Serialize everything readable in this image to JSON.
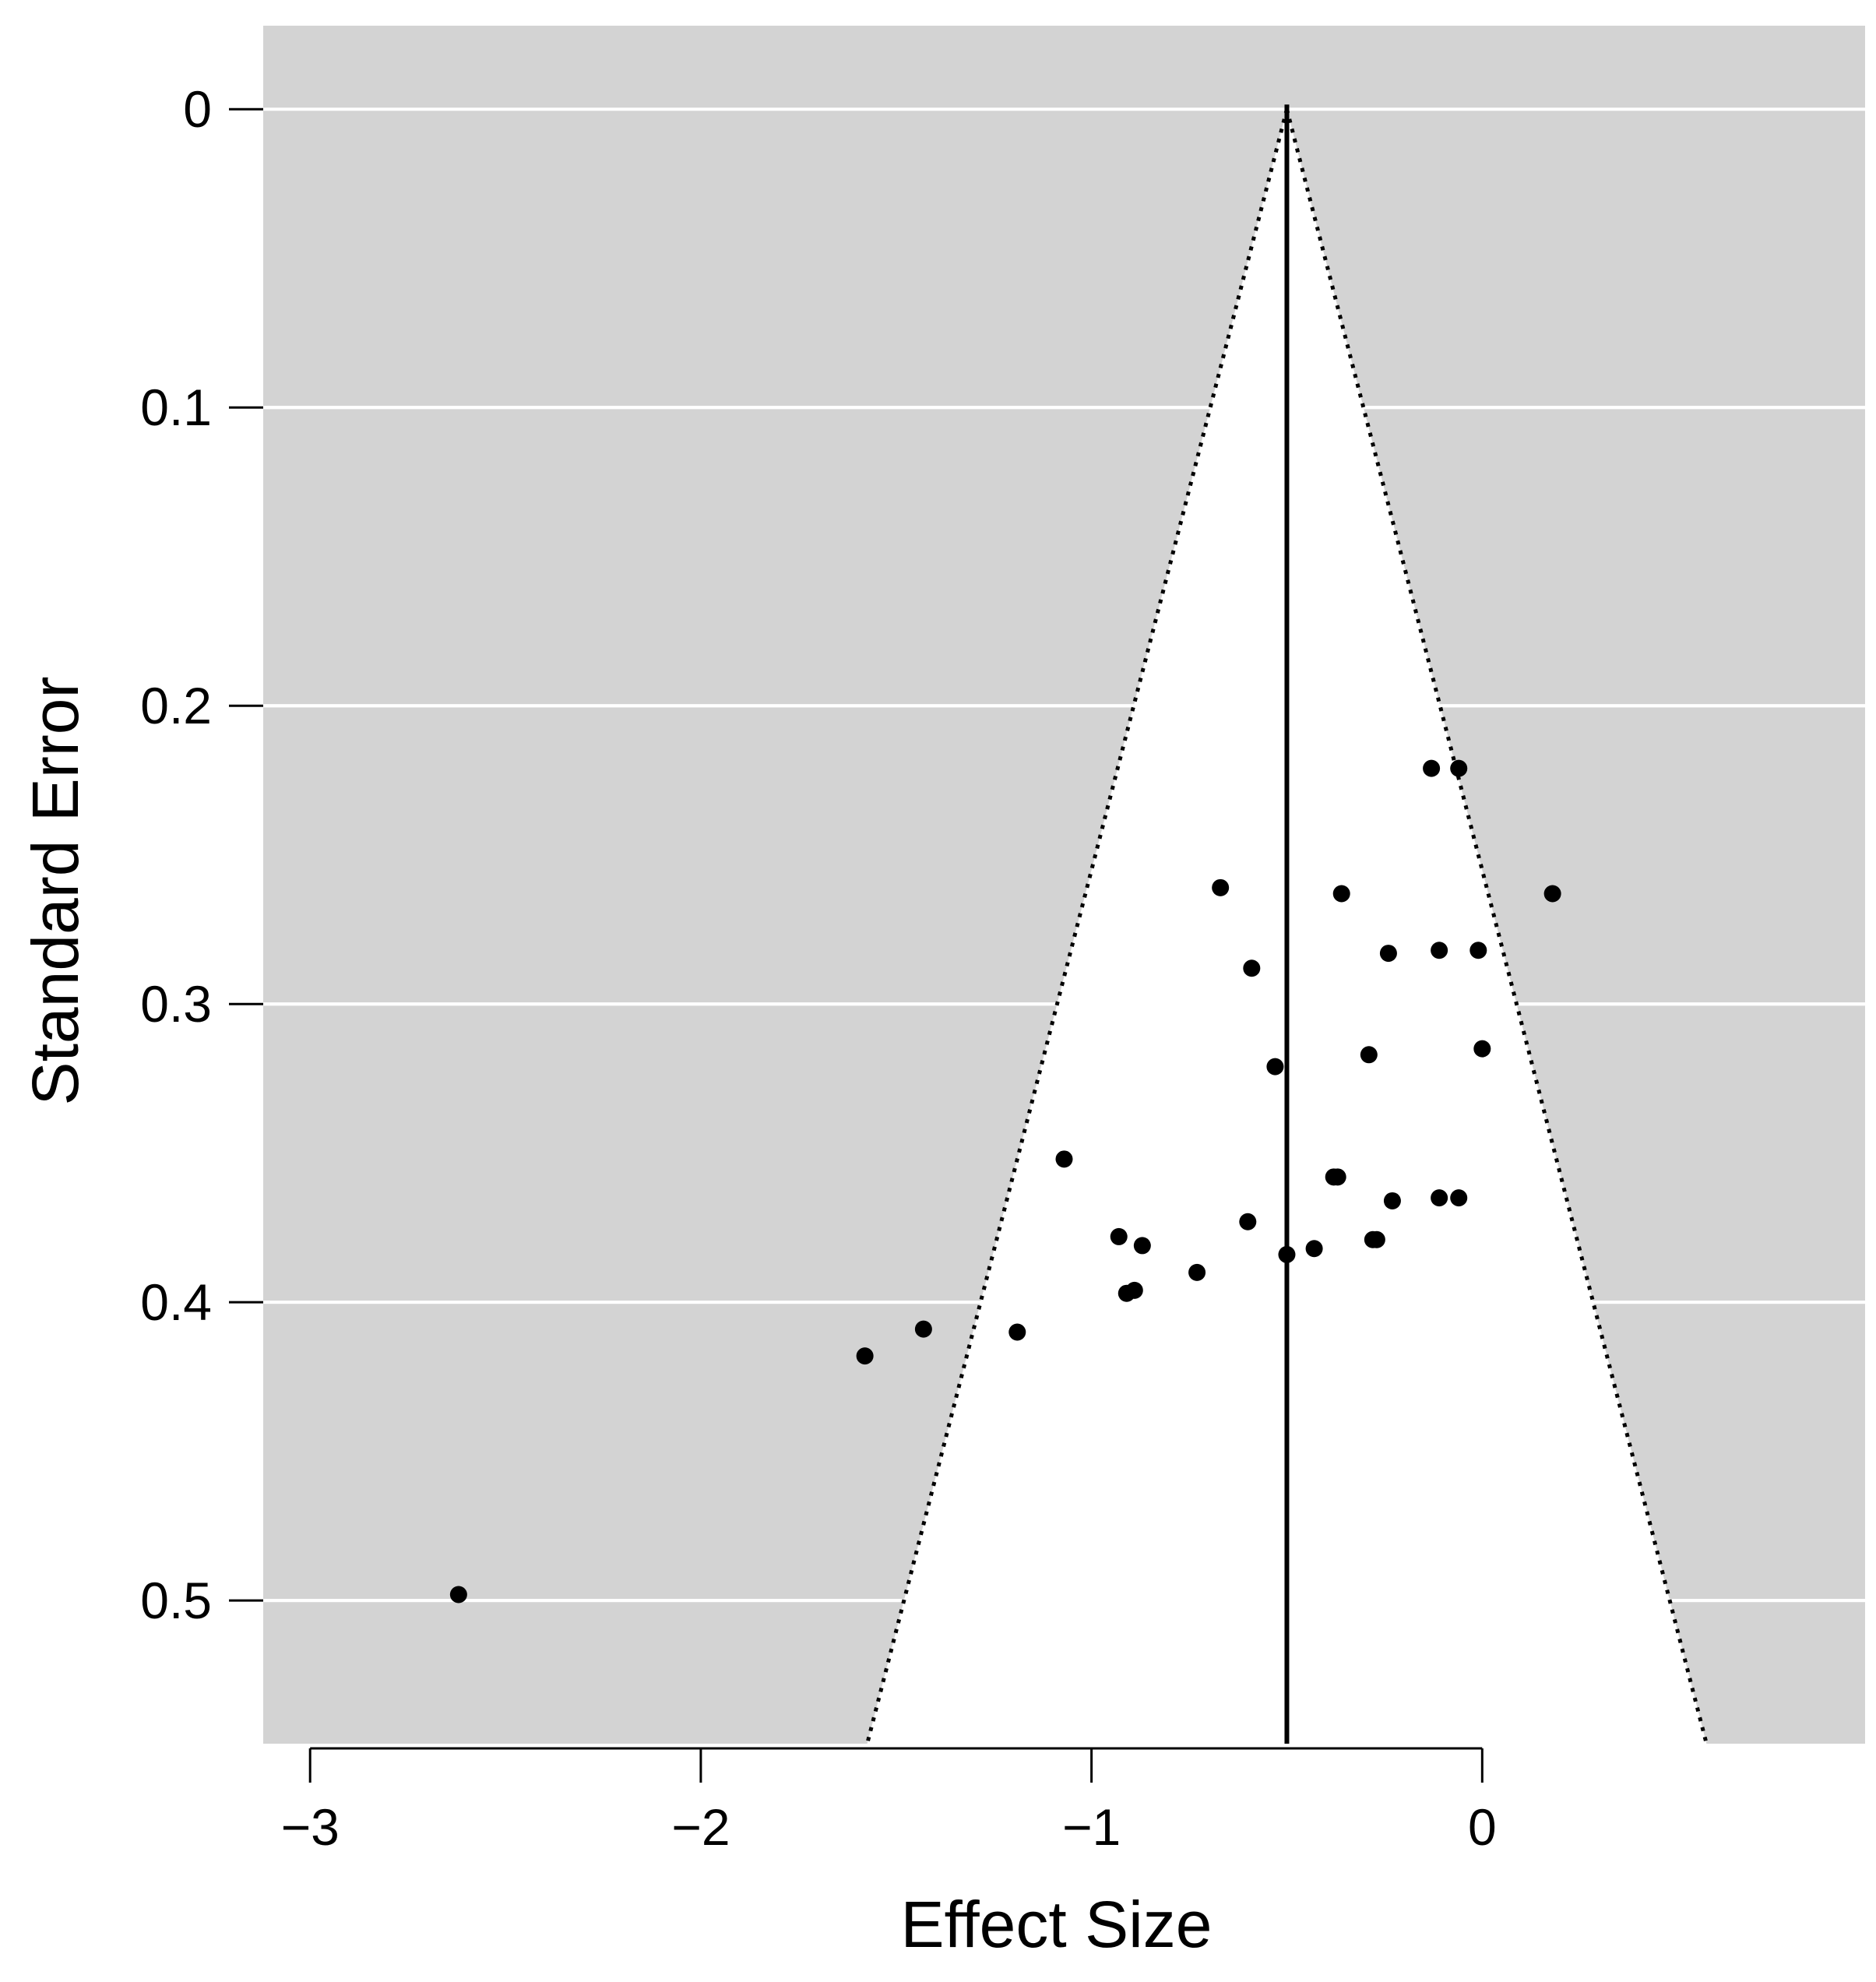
{
  "chart_data": {
    "type": "scatter",
    "subtype": "funnel plot",
    "xlabel": "Effect Size",
    "ylabel": "Standard Error",
    "xlim": [
      -3.12,
      0.98
    ],
    "ylim": [
      -0.028,
      0.548
    ],
    "y_reversed": true,
    "x_ticks": [
      -3,
      -2,
      -1,
      0
    ],
    "x_tick_labels": [
      "−3",
      "−2",
      "−1",
      "0"
    ],
    "y_ticks": [
      0,
      0.1,
      0.2,
      0.3,
      0.4,
      0.5
    ],
    "y_tick_labels": [
      "0",
      "0.1",
      "0.2",
      "0.3",
      "0.4",
      "0.5"
    ],
    "grid": "horizontal",
    "center_line": -0.5,
    "funnel_multiplier": 1.96,
    "colors": {
      "background": "#d3d3d3",
      "funnel_fill": "#ffffff",
      "grid": "#ffffff",
      "points": "#000000",
      "lines": "#000000"
    },
    "points": [
      {
        "x": -0.13,
        "y": 0.221
      },
      {
        "x": -0.06,
        "y": 0.221
      },
      {
        "x": -0.67,
        "y": 0.261
      },
      {
        "x": -0.36,
        "y": 0.263
      },
      {
        "x": 0.18,
        "y": 0.263
      },
      {
        "x": -0.24,
        "y": 0.283
      },
      {
        "x": -0.11,
        "y": 0.282
      },
      {
        "x": -0.01,
        "y": 0.282
      },
      {
        "x": -0.59,
        "y": 0.288
      },
      {
        "x": -0.29,
        "y": 0.317
      },
      {
        "x": 0.0,
        "y": 0.315
      },
      {
        "x": -0.53,
        "y": 0.321
      },
      {
        "x": -1.07,
        "y": 0.352
      },
      {
        "x": -0.38,
        "y": 0.358
      },
      {
        "x": -0.37,
        "y": 0.358
      },
      {
        "x": -0.23,
        "y": 0.366
      },
      {
        "x": -0.11,
        "y": 0.365
      },
      {
        "x": -0.06,
        "y": 0.365
      },
      {
        "x": -0.6,
        "y": 0.373
      },
      {
        "x": -0.93,
        "y": 0.378
      },
      {
        "x": -0.28,
        "y": 0.379
      },
      {
        "x": -0.27,
        "y": 0.379
      },
      {
        "x": -0.87,
        "y": 0.381
      },
      {
        "x": -0.43,
        "y": 0.382
      },
      {
        "x": -0.5,
        "y": 0.384
      },
      {
        "x": -0.73,
        "y": 0.39
      },
      {
        "x": -0.91,
        "y": 0.397
      },
      {
        "x": -0.89,
        "y": 0.396
      },
      {
        "x": -1.43,
        "y": 0.409
      },
      {
        "x": -1.19,
        "y": 0.41
      },
      {
        "x": -1.58,
        "y": 0.418
      },
      {
        "x": -2.62,
        "y": 0.498
      }
    ]
  }
}
